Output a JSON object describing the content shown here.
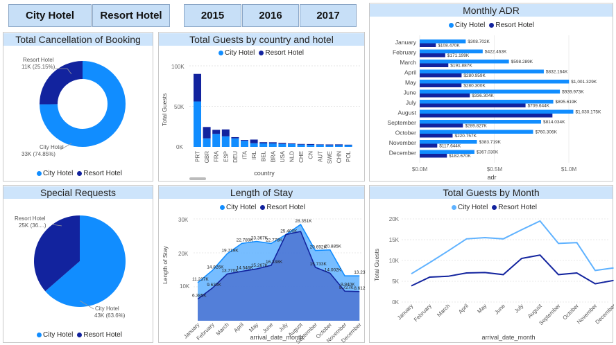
{
  "colors": {
    "city": "#118dff",
    "resort": "#12239e",
    "cityLight": "#5fb2ff",
    "resortMid": "#4a6fd0",
    "titleBg": "#cde4fb"
  },
  "slicers": {
    "hotels": [
      "City Hotel",
      "Resort Hotel"
    ],
    "years": [
      "2015",
      "2016",
      "2017"
    ]
  },
  "legend": {
    "city": "City Hotel",
    "resort": "Resort Hotel"
  },
  "cancellation": {
    "title": "Total Cancellation of Booking",
    "resort_label": "Resort Hotel",
    "resort_value": "11K (25.15%)",
    "city_label": "City Hotel",
    "city_value": "33K (74.85%)",
    "chart_data": {
      "type": "pie",
      "variant": "donut",
      "labels": [
        "City Hotel",
        "Resort Hotel"
      ],
      "values": [
        74.85,
        25.15
      ]
    }
  },
  "special": {
    "title": "Special Requests",
    "resort_label": "Resort Hotel",
    "resort_value": "25K (36....)",
    "city_label": "City Hotel",
    "city_value": "43K (63.6%)",
    "chart_data": {
      "type": "pie",
      "labels": [
        "City Hotel",
        "Resort Hotel"
      ],
      "values": [
        63.6,
        36.4
      ]
    }
  },
  "guests_country": {
    "title": "Total Guests by country and hotel",
    "xlabel": "country",
    "ylabel": "Total Guests",
    "yticks": [
      "0K",
      "50K",
      "100K"
    ],
    "chart_data": {
      "type": "bar",
      "stacked": true,
      "categories": [
        "PRT",
        "GBR",
        "FRA",
        "ESP",
        "DEU",
        "ITA",
        "IRL",
        "BEL",
        "BRA",
        "USA",
        "NLD",
        "CHE",
        "CN",
        "AUT",
        "SWE",
        "CHN",
        "POL"
      ],
      "series": [
        {
          "name": "City Hotel",
          "values": [
            56000,
            10500,
            16000,
            13000,
            10500,
            7500,
            4500,
            4300,
            4200,
            3600,
            3500,
            2800,
            2500,
            2700,
            2000,
            2100,
            2100
          ]
        },
        {
          "name": "Resort Hotel",
          "values": [
            34000,
            14000,
            5000,
            8500,
            1500,
            1000,
            4500,
            1500,
            1500,
            1300,
            800,
            800,
            1000,
            500,
            1000,
            1000,
            600
          ]
        }
      ],
      "ylim": [
        0,
        110000
      ]
    }
  },
  "adr": {
    "title": "Monthly ADR",
    "xlabel": "adr",
    "xticks": [
      "$0.0M",
      "$0.5M",
      "$1.0M"
    ],
    "chart_data": {
      "type": "bar",
      "orientation": "horizontal",
      "categories": [
        "January",
        "February",
        "March",
        "April",
        "May",
        "June",
        "July",
        "August",
        "September",
        "October",
        "November",
        "December"
      ],
      "series": [
        {
          "name": "City Hotel",
          "values": [
            308702,
            422463,
            598289,
            832164,
            1001329,
            939973,
            895619,
            1030175,
            814034,
            760306,
            383719,
            367030
          ]
        },
        {
          "name": "Resort Hotel",
          "values": [
            108470,
            171199,
            191887,
            280959,
            280300,
            336304,
            709644,
            890000,
            289827,
            220757,
            117644,
            182670
          ]
        }
      ],
      "city_labels": [
        "$308.702K",
        "$422.463K",
        "$598.289K",
        "$832.164K",
        "$1,001.329K",
        "$939.973K",
        "$895.619K",
        "$1,030.175K",
        "$814.034K",
        "$760.306K",
        "$383.719K",
        "$367.030K"
      ],
      "resort_labels": [
        "$108.470K",
        "$171.199K",
        "$191.887K",
        "$280.959K",
        "$280.300K",
        "$336.304K",
        "$709.644K",
        "",
        "$289.827K",
        "$220.757K",
        "$117.644K",
        "$182.670K"
      ],
      "xlim": [
        0,
        1100000
      ]
    }
  },
  "stay": {
    "title": "Length of Stay",
    "xlabel": "arrival_date_month",
    "ylabel": "Length of Stay",
    "yticks": [
      "10K",
      "20K",
      "30K"
    ],
    "chart_data": {
      "type": "area",
      "categories": [
        "January",
        "February",
        "March",
        "April",
        "May",
        "June",
        "July",
        "August",
        "September",
        "October",
        "November",
        "December"
      ],
      "series": [
        {
          "name": "City Hotel",
          "values": [
            11237,
            14826,
            19719,
            22789,
            23367,
            22778,
            25400,
            28351,
            20692,
            20885,
            13237,
            13237
          ],
          "labels": [
            "11.237K",
            "14.826K",
            "19.719K",
            "22.789K",
            "23.367K",
            "22.778K",
            "25.400K",
            "28.351K",
            "20.692K",
            "20.885K",
            "",
            "13.237K"
          ]
        },
        {
          "name": "Resort Hotel",
          "values": [
            6385,
            9630,
            13770,
            14546,
            15267,
            16338,
            25400,
            26300,
            15733,
            14002,
            8727,
            8612
          ],
          "labels": [
            "6.385K",
            "9.630K",
            "13.770K",
            "14.546K",
            "15.267K",
            "16.338K",
            "",
            "",
            "15.733K",
            "14.002K",
            "8.727K",
            "8.612K"
          ]
        }
      ],
      "extra_labels": [
        "9.940K"
      ],
      "ylim": [
        0,
        31000
      ]
    }
  },
  "guests_month": {
    "title": "Total Guests by Month",
    "xlabel": "arrival_date_month",
    "ylabel": "Total Guests",
    "yticks": [
      "0K",
      "5K",
      "10K",
      "15K",
      "20K"
    ],
    "chart_data": {
      "type": "line",
      "categories": [
        "January",
        "February",
        "March",
        "April",
        "May",
        "June",
        "July",
        "August",
        "September",
        "October",
        "November",
        "December"
      ],
      "series": [
        {
          "name": "City Hotel",
          "values": [
            6800,
            9500,
            12300,
            15200,
            15500,
            15200,
            17400,
            19500,
            14100,
            14300,
            7600,
            8200
          ]
        },
        {
          "name": "Resort Hotel",
          "values": [
            3900,
            6000,
            6200,
            7000,
            7100,
            6600,
            10500,
            11300,
            6600,
            7000,
            4400,
            5200
          ]
        }
      ],
      "ylim": [
        0,
        21000
      ]
    }
  }
}
